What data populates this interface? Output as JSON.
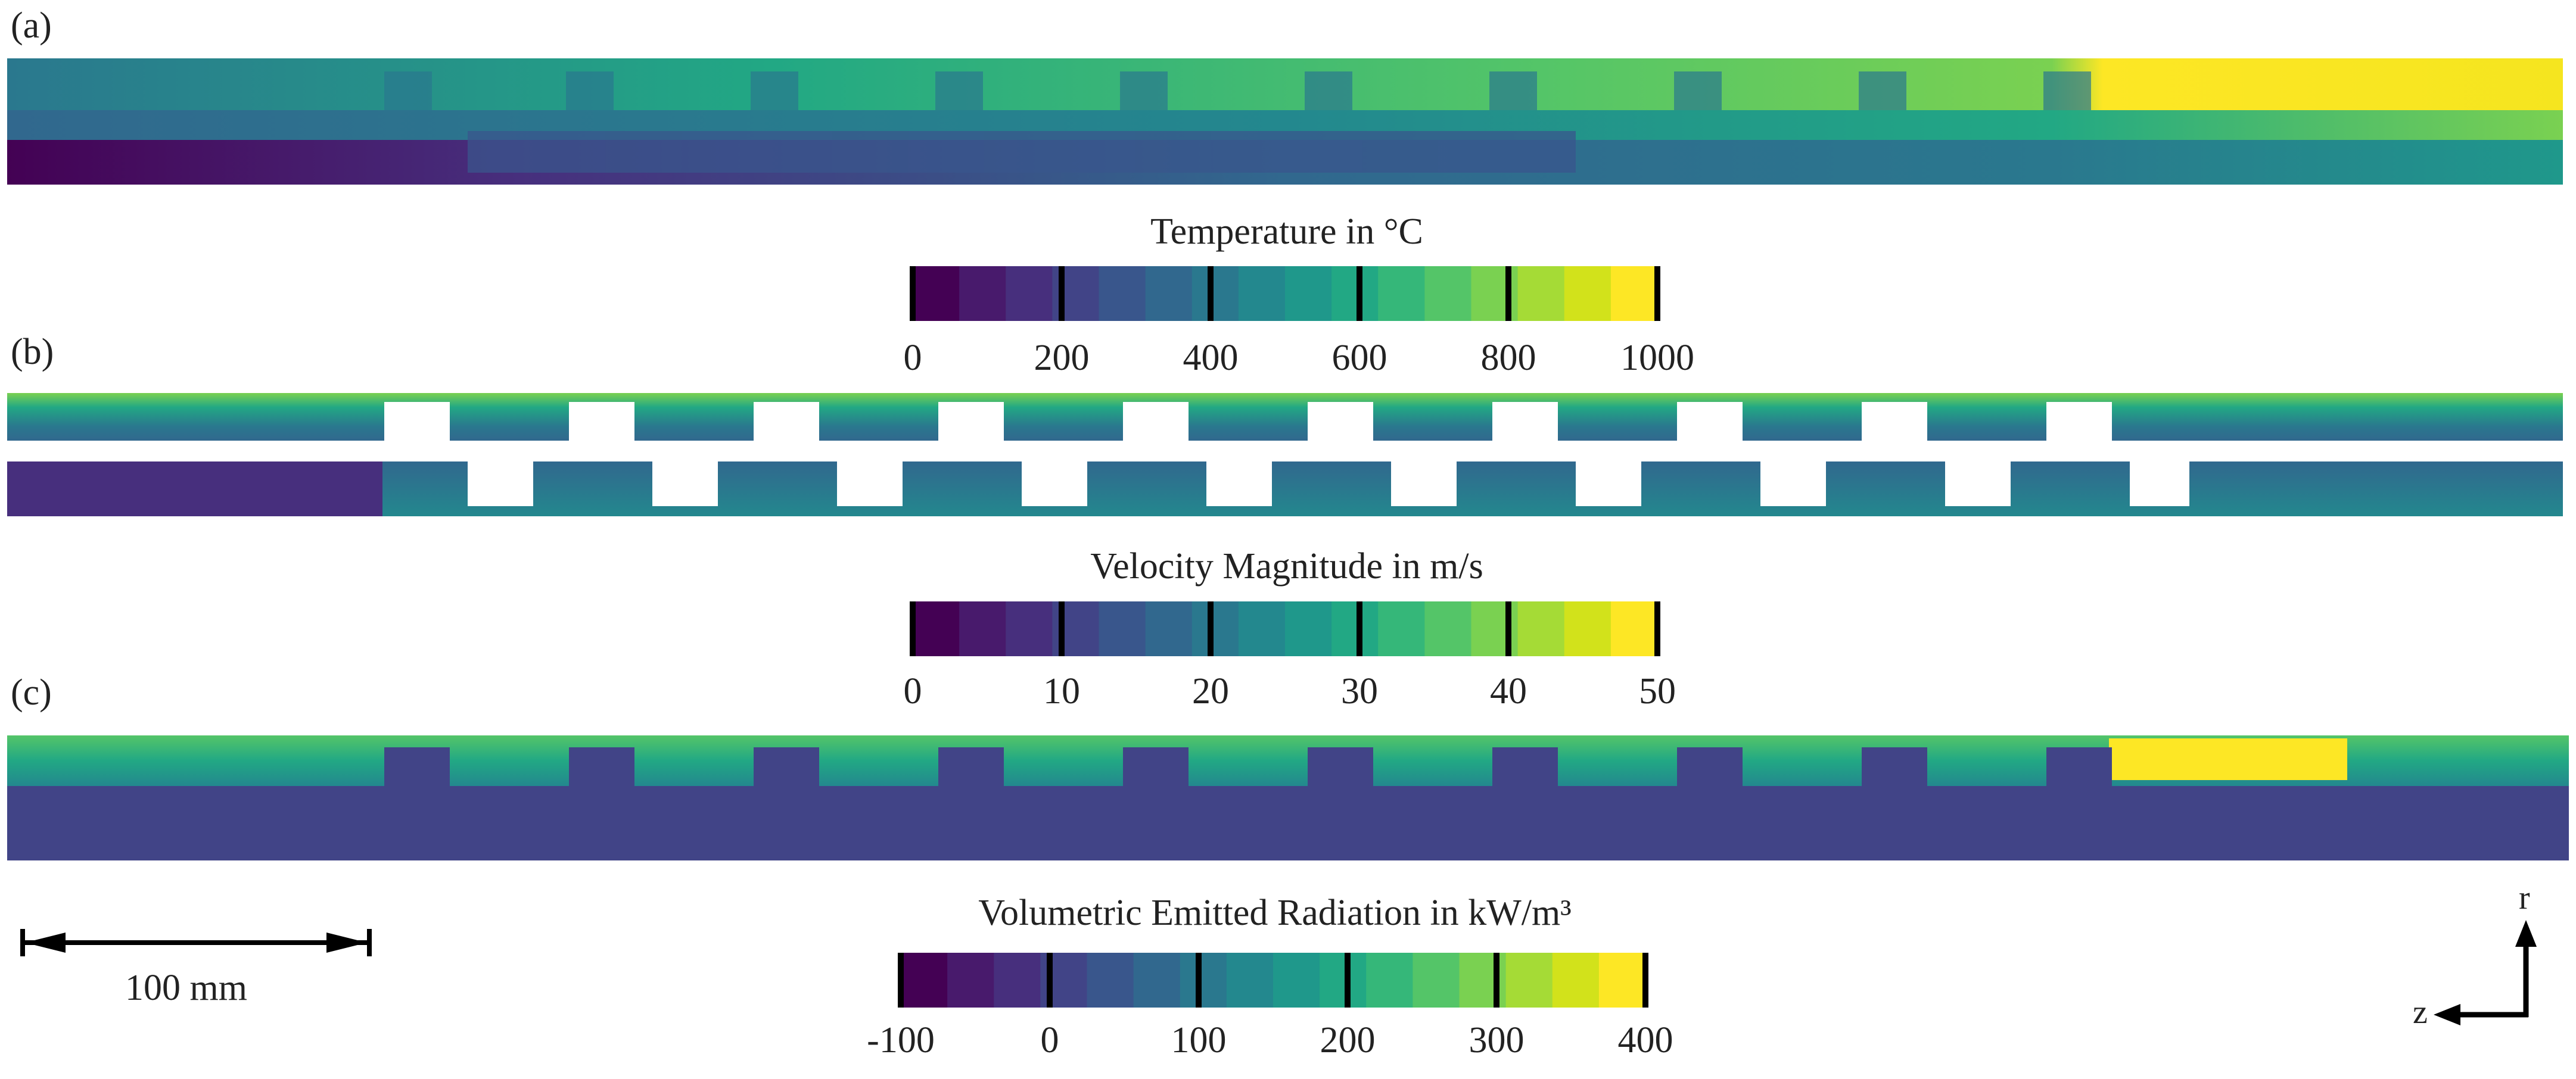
{
  "panels": [
    {
      "label": "(a)"
    },
    {
      "label": "(b)"
    },
    {
      "label": "(c)"
    }
  ],
  "colorbars": [
    {
      "title": "Temperature in °C",
      "ticks": [
        "0",
        "200",
        "400",
        "600",
        "800",
        "1000"
      ]
    },
    {
      "title": "Velocity Magnitude in m/s",
      "ticks": [
        "0",
        "10",
        "20",
        "30",
        "40",
        "50"
      ]
    },
    {
      "title": "Volumetric Emitted Radiation in kW/m³",
      "ticks": [
        "-100",
        "0",
        "100",
        "200",
        "300",
        "400"
      ]
    }
  ],
  "scale_bar": {
    "label": "100 mm"
  },
  "axes": {
    "radial": "r",
    "axial": "z"
  },
  "colors": {
    "palette": [
      "#440154",
      "#481a6c",
      "#472f7d",
      "#414487",
      "#39568c",
      "#31688e",
      "#2a788e",
      "#23888e",
      "#1f988b",
      "#22a884",
      "#35b779",
      "#54c568",
      "#7ad151",
      "#a5db36",
      "#d2e21b",
      "#fde725"
    ],
    "line": "#000000"
  }
}
